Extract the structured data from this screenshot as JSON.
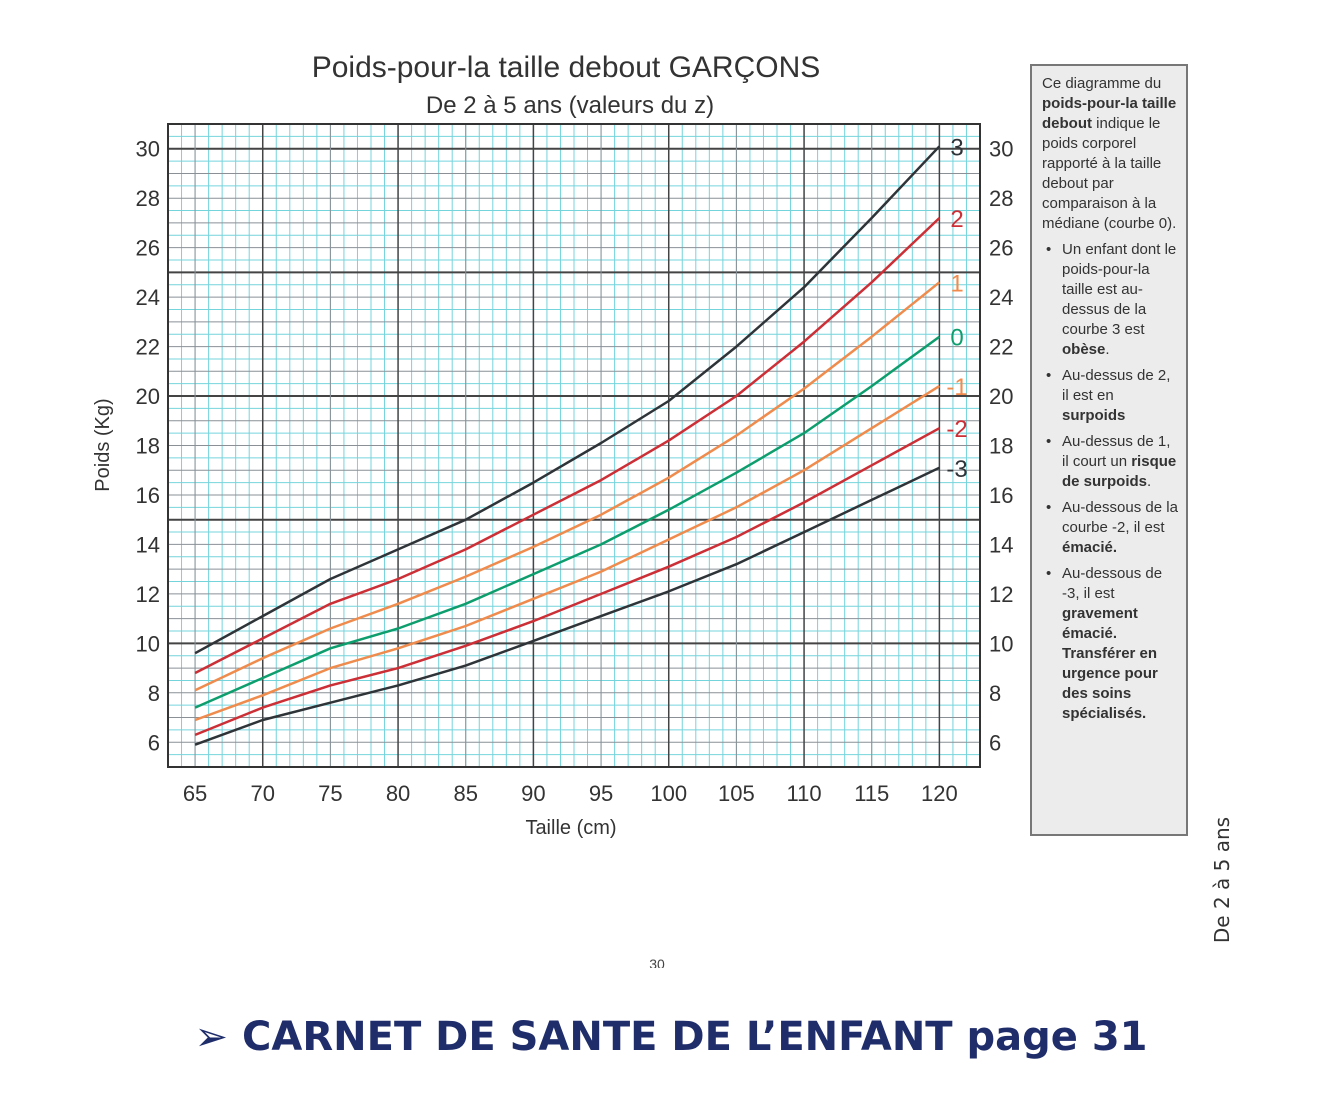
{
  "chart_data": {
    "type": "line",
    "title": "Poids-pour-la taille debout GARÇONS",
    "subtitle": "De 2 à 5 ans (valeurs du z)",
    "xlabel": "Taille (cm)",
    "ylabel": "Poids (Kg)",
    "xlim": [
      63,
      123
    ],
    "ylim": [
      5,
      31
    ],
    "x_ticks": [
      65,
      70,
      75,
      80,
      85,
      90,
      95,
      100,
      105,
      110,
      115,
      120
    ],
    "y_ticks": [
      6,
      8,
      10,
      12,
      14,
      16,
      18,
      20,
      22,
      24,
      26,
      28,
      30
    ],
    "grid": true,
    "x": [
      65,
      70,
      75,
      80,
      85,
      90,
      95,
      100,
      105,
      110,
      115,
      120
    ],
    "series": [
      {
        "name": "3",
        "color": "#2f3438",
        "values": [
          9.6,
          11.1,
          12.6,
          13.8,
          15.0,
          16.5,
          18.1,
          19.8,
          22.0,
          24.4,
          27.2,
          30.1
        ]
      },
      {
        "name": "2",
        "color": "#cc2f36",
        "values": [
          8.8,
          10.2,
          11.6,
          12.6,
          13.8,
          15.2,
          16.6,
          18.2,
          20.0,
          22.2,
          24.6,
          27.2
        ]
      },
      {
        "name": "1",
        "color": "#ef8b4c",
        "values": [
          8.1,
          9.4,
          10.6,
          11.6,
          12.7,
          13.9,
          15.2,
          16.7,
          18.4,
          20.3,
          22.4,
          24.6
        ]
      },
      {
        "name": "0",
        "color": "#0e9e6e",
        "values": [
          7.4,
          8.6,
          9.8,
          10.6,
          11.6,
          12.8,
          14.0,
          15.4,
          16.9,
          18.5,
          20.4,
          22.4
        ]
      },
      {
        "name": "-1",
        "color": "#ef8b4c",
        "values": [
          6.9,
          7.9,
          9.0,
          9.8,
          10.7,
          11.8,
          12.9,
          14.2,
          15.5,
          17.0,
          18.7,
          20.4
        ]
      },
      {
        "name": "-2",
        "color": "#cc2f36",
        "values": [
          6.3,
          7.4,
          8.3,
          9.0,
          9.9,
          10.9,
          12.0,
          13.1,
          14.3,
          15.7,
          17.2,
          18.7
        ]
      },
      {
        "name": "-3",
        "color": "#2f3438",
        "values": [
          5.9,
          6.9,
          7.6,
          8.3,
          9.1,
          10.1,
          11.1,
          12.1,
          13.2,
          14.5,
          15.8,
          17.1
        ]
      }
    ]
  },
  "info_box": {
    "intro_1": "Ce diagramme du",
    "intro_bold": "poids-pour-la taille debout",
    "intro_2": "indique le poids corporel rapporté à la taille debout par comparaison à la médiane (courbe 0).",
    "b1_text": "Un enfant dont le poids-pour-la taille est au-dessus de la courbe 3 est",
    "b1_bold": "obèse",
    "b1_end": ".",
    "b2_text": "Au-dessus de 2, il est en",
    "b2_bold": "surpoids",
    "b3_text": "Au-dessus de 1, il court un",
    "b3_bold": "risque de surpoids",
    "b3_end": ".",
    "b4_text": "Au-dessous de la courbe -2, il est",
    "b4_bold": "émacié.",
    "b5_text": "Au-dessous de -3, il est",
    "b5_bold": "gravement émacié. Transférer en urgence pour des soins spécialisés."
  },
  "side_label": "De 2 à 5 ans",
  "page_number": "30",
  "footer": {
    "arrow": "➢",
    "text": "CARNET DE SANTE DE L’ENFANT page 31"
  }
}
